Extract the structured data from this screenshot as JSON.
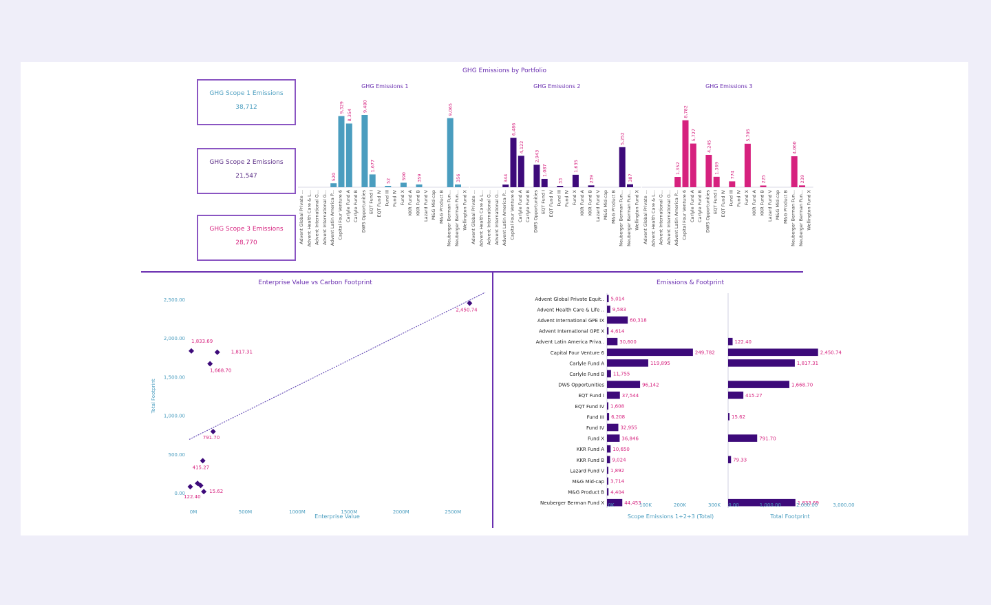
{
  "dashboard": {
    "title": "GHG Emissions by Portfolio",
    "kpis": [
      {
        "label": "GHG Scope 1 Emissions",
        "value": "38,712"
      },
      {
        "label": "GHG Scope 2 Emissions",
        "value": "21,547"
      },
      {
        "label": "GHG Scope 3 Emissions",
        "value": "28,770"
      }
    ]
  },
  "colors": {
    "scope1": "#4a9dbf",
    "scope2": "#3d0a7a",
    "scope3": "#d6217e",
    "accent": "#6a2fb0",
    "label_pink": "#d6217e"
  },
  "chart_data": [
    {
      "type": "bar",
      "title": "GHG Emissions by Portfolio",
      "categories": [
        "Advent Global Private ...",
        "Advent Health Care & L...",
        "Advent International G...",
        "Advent International G...",
        "Advent Latin America P...",
        "Capital Four Venture 6",
        "Carlyle Fund A",
        "Carlyle Fund B",
        "DWS Opportunities",
        "EQT Fund I",
        "EQT Fund IV",
        "Fund III",
        "Fund IV",
        "Fund X",
        "KKR Fund A",
        "KKR Fund B",
        "Lazard Fund V",
        "M&G Mid-cap",
        "M&G Product B",
        "Neuberger Berman Fun...",
        "Neuberger Berman Fun...",
        "Wellington Fund X"
      ],
      "series": [
        {
          "name": "GHG Emissions 1",
          "values": [
            null,
            null,
            null,
            null,
            520,
            9329,
            8354,
            null,
            9480,
            1677,
            null,
            52,
            null,
            590,
            null,
            359,
            null,
            null,
            null,
            9065,
            356,
            null
          ]
        },
        {
          "name": "GHG Emissions 2",
          "values": [
            null,
            null,
            null,
            null,
            344,
            6486,
            4122,
            null,
            2943,
            1087,
            null,
            33,
            null,
            1635,
            null,
            239,
            null,
            null,
            null,
            5252,
            387,
            null
          ]
        },
        {
          "name": "GHG Emissions 3",
          "values": [
            null,
            null,
            null,
            null,
            1352,
            8782,
            5727,
            null,
            4245,
            1369,
            null,
            774,
            null,
            5705,
            null,
            225,
            null,
            null,
            null,
            4060,
            239,
            null
          ]
        }
      ]
    },
    {
      "type": "scatter",
      "title": "Enterprise Value vs Carbon Footprint",
      "xlabel": "Enterprise Value",
      "ylabel": "Total Footprint",
      "xlim": [
        0,
        2850
      ],
      "ylim": [
        0,
        2500
      ],
      "x_ticks": [
        "0M",
        "500M",
        "1000M",
        "1500M",
        "2000M",
        "2500M"
      ],
      "y_ticks": [
        "0.00",
        "500.00",
        "1,000.00",
        "1,500.00",
        "2,000.00",
        "2,500.00"
      ],
      "points": [
        {
          "x": 2700,
          "y": 2450.74,
          "label": "2,450.74"
        },
        {
          "x": 20,
          "y": 1833.69,
          "label": "1,833.69"
        },
        {
          "x": 270,
          "y": 1817.31,
          "label": "1,817.31"
        },
        {
          "x": 200,
          "y": 1668.7,
          "label": "1,668.70"
        },
        {
          "x": 230,
          "y": 791.7,
          "label": "791.70"
        },
        {
          "x": 130,
          "y": 415.27,
          "label": "415.27"
        },
        {
          "x": 80,
          "y": 122.4,
          "label": "122.40"
        },
        {
          "x": 140,
          "y": 15.62,
          "label": "15.62"
        },
        {
          "x": 10,
          "y": 79.33,
          "label": ""
        },
        {
          "x": 110,
          "y": 95,
          "label": ""
        }
      ],
      "trendline": {
        "x1": 0,
        "y1": 690,
        "x2": 2850,
        "y2": 2590
      }
    },
    {
      "type": "bar",
      "orientation": "horizontal",
      "title": "Emissions & Footprint",
      "categories": [
        "Advent Global Private Equit..",
        "Advent Health Care & Life ..",
        "Advent International GPE IX",
        "Advent International GPE X",
        "Advent Latin America Priva..",
        "Capital Four Venture 6",
        "Carlyle Fund A",
        "Carlyle Fund B",
        "DWS Opportunities",
        "EQT Fund I",
        "EQT Fund IV",
        "Fund III",
        "Fund IV",
        "Fund X",
        "KKR Fund A",
        "KKR Fund B",
        "Lazard Fund V",
        "M&G Mid-cap",
        "M&G Product B",
        "Neuberger Berman Fund X"
      ],
      "series": [
        {
          "name": "Scope Emissions 1+2+3 (Total)",
          "xlabel": "Scope Emissions 1+2+3 (Total)",
          "xlim": [
            0,
            310000
          ],
          "x_ticks": [
            "0K",
            "100K",
            "200K",
            "300K"
          ],
          "values": [
            5014,
            9583,
            60318,
            4614,
            30600,
            249782,
            119895,
            11755,
            96142,
            37544,
            1608,
            6208,
            32955,
            36846,
            10650,
            9024,
            1892,
            3714,
            4404,
            44453
          ],
          "labels": [
            "5,014",
            "9,583",
            "60,318",
            "4,614",
            "30,600",
            "249,782",
            "119,895",
            "11,755",
            "96,142",
            "37,544",
            "1,608",
            "6,208",
            "32,955",
            "36,846",
            "10,650",
            "9,024",
            "1,892",
            "3,714",
            "4,404",
            "44,453"
          ]
        },
        {
          "name": "Total Footprint",
          "xlabel": "Total Footprint",
          "xlim": [
            0,
            3000
          ],
          "x_ticks": [
            "0.00",
            "1,000.00",
            "2,000.00",
            "3,000.00"
          ],
          "values": [
            null,
            null,
            null,
            null,
            122.4,
            2450.74,
            1817.31,
            null,
            1668.7,
            415.27,
            null,
            15.62,
            null,
            791.7,
            null,
            79.33,
            null,
            null,
            null,
            1833.69
          ],
          "labels": [
            "",
            "",
            "",
            "",
            "122.40",
            "2,450.74",
            "1,817.31",
            "",
            "1,668.70",
            "415.27",
            "",
            "15.62",
            "",
            "791.70",
            "",
            "79.33",
            "",
            "",
            "",
            "1,833.69"
          ]
        }
      ]
    }
  ]
}
